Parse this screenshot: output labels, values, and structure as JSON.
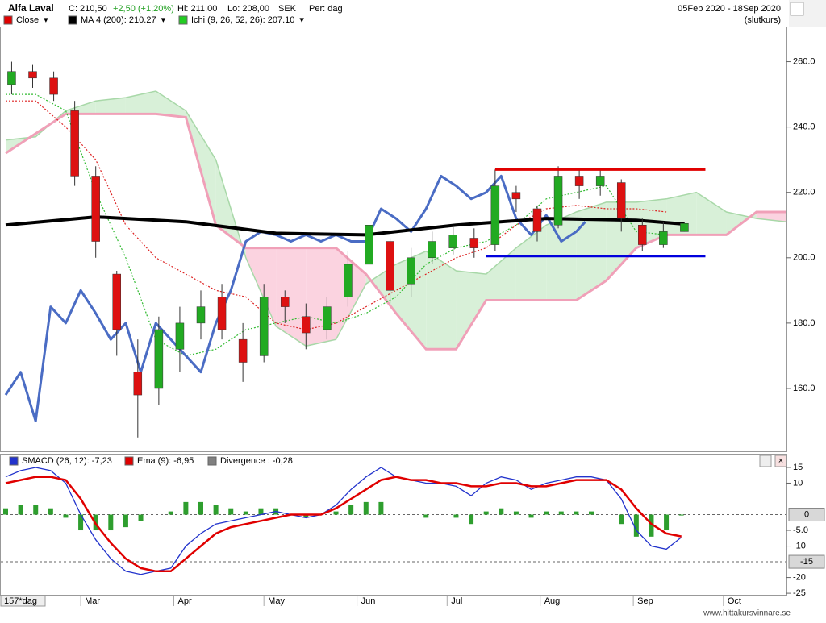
{
  "header": {
    "title": "Alfa Laval",
    "close": "C: 210,50",
    "change": "+2,50 (+1,20%)",
    "hi": "Hi: 211,00",
    "lo": "Lo: 208,00",
    "currency": "SEK",
    "period": "Per: dag",
    "range": "05Feb 2020 - 18Sep 2020",
    "mode": "(slutkurs)",
    "days": "157*dag",
    "footer": "www.hittakursvinnare.se"
  },
  "chart_data": [
    {
      "type": "candlestick",
      "ylim": [
        141,
        270
      ],
      "xlim": [
        0,
        260
      ],
      "yticks": [
        {
          "value": 260,
          "label": "260.0"
        },
        {
          "value": 240,
          "label": "240.0"
        },
        {
          "value": 220,
          "label": "220.0"
        },
        {
          "value": 200,
          "label": "200.0"
        },
        {
          "value": 180,
          "label": "180.0"
        },
        {
          "value": 160,
          "label": "160.0"
        }
      ],
      "xticks": [
        {
          "value": 25,
          "label": "Mar"
        },
        {
          "value": 56,
          "label": "Apr"
        },
        {
          "value": 86,
          "label": "May"
        },
        {
          "value": 117,
          "label": "Jun"
        },
        {
          "value": 147,
          "label": "Jul"
        },
        {
          "value": 178,
          "label": "Aug"
        },
        {
          "value": 209,
          "label": "Sep"
        },
        {
          "value": 239,
          "label": "Oct"
        }
      ],
      "candles": {
        "name": "Close",
        "color": "#e00000",
        "up_color": "#22aa22",
        "down_color": "#dd1111",
        "x": [
          2,
          9,
          16,
          23,
          30,
          37,
          44,
          51,
          58,
          65,
          72,
          79,
          86,
          93,
          100,
          107,
          114,
          121,
          128,
          135,
          142,
          149,
          156,
          163,
          170,
          177,
          184,
          191,
          198,
          205,
          212,
          219,
          226
        ],
        "open": [
          253,
          257,
          255,
          245,
          225,
          195,
          165,
          160,
          172,
          180,
          188,
          175,
          170,
          188,
          182,
          178,
          188,
          198,
          205,
          192,
          200,
          203,
          206,
          204,
          220,
          215,
          210,
          225,
          222,
          223,
          210,
          204,
          208
        ],
        "close": [
          257,
          255,
          250,
          225,
          205,
          178,
          158,
          178,
          180,
          185,
          178,
          168,
          188,
          185,
          177,
          185,
          198,
          210,
          190,
          200,
          205,
          207,
          203,
          222,
          218,
          208,
          225,
          222,
          225,
          212,
          204,
          208,
          210.5
        ],
        "high": [
          260,
          259,
          257,
          248,
          228,
          196,
          175,
          182,
          185,
          190,
          192,
          180,
          192,
          190,
          186,
          188,
          202,
          212,
          206,
          203,
          208,
          210,
          209,
          227,
          222,
          216,
          228,
          227,
          227,
          224,
          212,
          211,
          211
        ],
        "low": [
          250,
          252,
          248,
          222,
          200,
          170,
          145,
          155,
          165,
          175,
          175,
          162,
          168,
          180,
          172,
          175,
          185,
          196,
          186,
          188,
          198,
          201,
          200,
          202,
          214,
          205,
          209,
          218,
          219,
          208,
          202,
          203,
          208
        ]
      },
      "series": [
        {
          "name": "MA 4 (200): 210.27",
          "color": "#000000",
          "x": [
            0,
            30,
            60,
            90,
            120,
            150,
            180,
            210,
            226
          ],
          "values": [
            210,
            212.5,
            211,
            207.5,
            207,
            210,
            212,
            211.5,
            210.3
          ]
        }
      ],
      "ichimoku": {
        "name": "Ichi (9, 26, 52, 26): 207.10",
        "color": "#22cc22",
        "span_a_color": "#a8d8a8",
        "span_b_color": "#f0a0b8",
        "bull_fill": "#d8f0d8",
        "bear_fill": "#fbd3e0",
        "x": [
          0,
          10,
          20,
          30,
          40,
          50,
          60,
          70,
          80,
          90,
          100,
          110,
          120,
          130,
          140,
          150,
          160,
          170,
          180,
          190,
          200,
          210,
          220,
          230,
          240,
          250,
          260
        ],
        "span_a": [
          236,
          237,
          245,
          248,
          249,
          251,
          245,
          230,
          200,
          179,
          173,
          175,
          192,
          198,
          202,
          196,
          195,
          203,
          210,
          214,
          217,
          217,
          218,
          220,
          214,
          212,
          211
        ],
        "span_b": [
          232,
          238,
          244,
          244,
          244,
          244,
          243,
          210,
          203,
          203,
          203,
          203,
          195,
          183,
          172,
          172,
          187,
          187,
          187,
          187,
          193,
          203,
          207,
          207,
          207,
          214,
          214
        ],
        "line_x": [
          0,
          10,
          20,
          30,
          40,
          50,
          60,
          70,
          80,
          90,
          100,
          110,
          120,
          130,
          140,
          150,
          160,
          170,
          180,
          190,
          200,
          210,
          220
        ],
        "kijun_color": "#dd2222",
        "kijun": [
          248,
          248,
          240,
          230,
          210,
          200,
          195,
          190,
          188,
          180,
          178,
          180,
          185,
          190,
          195,
          200,
          203,
          210,
          215,
          216,
          215,
          215,
          214
        ],
        "tenkan_color": "#33bb33",
        "tenkan": [
          250,
          250,
          245,
          220,
          200,
          175,
          170,
          172,
          178,
          180,
          182,
          180,
          183,
          188,
          198,
          203,
          205,
          210,
          218,
          220,
          222,
          208,
          207
        ]
      },
      "overlay": {
        "color": "#4a6cc4",
        "x": [
          0,
          5,
          10,
          15,
          20,
          25,
          30,
          35,
          40,
          45,
          50,
          55,
          60,
          65,
          70,
          75,
          80,
          85,
          90,
          95,
          100,
          105,
          110,
          115,
          120,
          125,
          130,
          135,
          140,
          145,
          150,
          155,
          160,
          165,
          170,
          175,
          180,
          185,
          190,
          193
        ],
        "values": [
          158,
          165,
          150,
          185,
          180,
          190,
          183,
          175,
          180,
          165,
          180,
          175,
          170,
          165,
          180,
          190,
          205,
          208,
          207,
          205,
          207,
          205,
          207,
          205,
          205,
          215,
          212,
          208,
          215,
          225,
          222,
          218,
          220,
          225,
          212,
          207,
          213,
          205,
          208,
          211
        ]
      },
      "levels": [
        {
          "color": "#e00000",
          "value": 227,
          "x": [
            163,
            233
          ]
        },
        {
          "color": "#0000dd",
          "value": 200.5,
          "x": [
            160,
            233
          ]
        }
      ]
    },
    {
      "type": "macd",
      "ylim": [
        -26,
        15.5
      ],
      "xlim": [
        0,
        260
      ],
      "yticks": [
        15,
        10,
        {
          "value": -5,
          "label": "-5.0"
        },
        -10,
        -20,
        -25
      ],
      "hlines": [
        0,
        -15
      ],
      "x": [
        0,
        5,
        10,
        15,
        20,
        25,
        30,
        35,
        40,
        45,
        50,
        55,
        60,
        65,
        70,
        75,
        80,
        85,
        90,
        95,
        100,
        105,
        110,
        115,
        120,
        125,
        130,
        135,
        140,
        145,
        150,
        155,
        160,
        165,
        170,
        175,
        180,
        185,
        190,
        195,
        200,
        205,
        210,
        215,
        220,
        225
      ],
      "series": [
        {
          "name": "SMACD (26, 12): -7,23",
          "color": "#2233cc",
          "values": [
            12,
            14,
            15,
            14,
            10,
            0,
            -8,
            -14,
            -18,
            -19,
            -18,
            -17,
            -10,
            -6,
            -3,
            -2,
            -1,
            0,
            1,
            0,
            -1,
            0,
            3,
            8,
            12,
            15,
            12,
            11,
            10,
            10,
            9,
            6,
            10,
            12,
            11,
            8,
            10,
            11,
            12,
            12,
            11,
            5,
            -5,
            -10,
            -11,
            -7.2
          ]
        },
        {
          "name": "Ema (9): -6,95",
          "color": "#e00000",
          "values": [
            10,
            11,
            12,
            12,
            11,
            5,
            -3,
            -9,
            -14,
            -17,
            -18,
            -18,
            -14,
            -10,
            -6,
            -4,
            -3,
            -2,
            -1,
            0,
            0,
            0,
            2,
            5,
            8,
            11,
            12,
            11,
            11,
            10,
            10,
            9,
            9,
            10,
            10,
            9,
            9,
            10,
            11,
            11,
            11,
            8,
            2,
            -3,
            -6,
            -6.95
          ]
        },
        {
          "name": "Divergence : -0,28",
          "color": "#808080",
          "bar_color": "#2e9e2e",
          "values": [
            2,
            3,
            3,
            2,
            -1,
            -5,
            -5,
            -5,
            -4,
            -2,
            0,
            1,
            4,
            4,
            3,
            2,
            1,
            2,
            2,
            0,
            -1,
            0,
            1,
            3,
            4,
            4,
            0,
            0,
            -1,
            0,
            -1,
            -3,
            1,
            2,
            1,
            -1,
            1,
            1,
            1,
            1,
            0,
            -3,
            -7,
            -7,
            -5,
            -0.28
          ]
        }
      ]
    }
  ]
}
